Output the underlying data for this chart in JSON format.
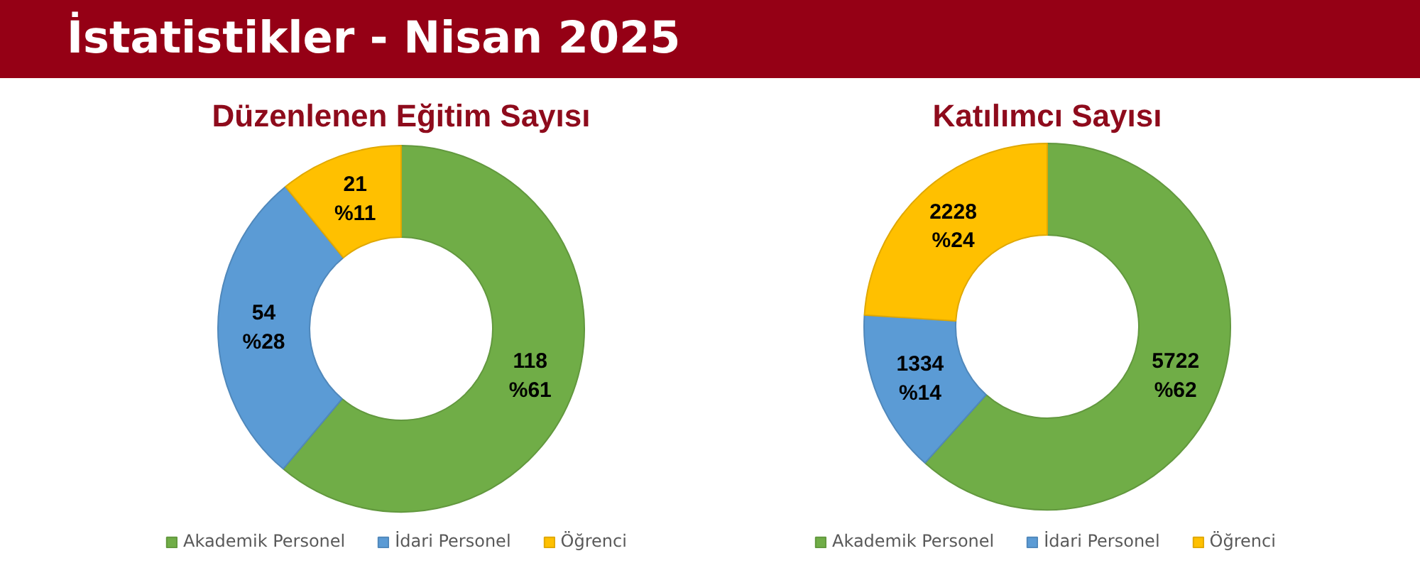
{
  "chart_data": [
    {
      "type": "donut",
      "title": "Düzenlenen Eğitim Sayısı",
      "annotations": [
        "İstatistikler - Nisan 2025"
      ],
      "categories": [
        "Akademik Personel",
        "İdari Personel",
        "Öğrenci"
      ],
      "values": [
        118,
        54,
        21
      ],
      "colors": [
        "#70ad47",
        "#5b9bd5",
        "#ffc000"
      ],
      "value_labels": [
        "118\n%61",
        "54\n%28",
        "21\n%11"
      ],
      "legend": "bottom"
    },
    {
      "type": "donut",
      "title": "Katılımcı Sayısı",
      "categories": [
        "Akademik Personel",
        "İdari Personel",
        "Öğrenci"
      ],
      "values": [
        5722,
        1334,
        2228
      ],
      "colors": [
        "#70ad47",
        "#5b9bd5",
        "#ffc000"
      ],
      "value_labels": [
        "5722\n%62",
        "1334\n%14",
        "2228\n%24"
      ],
      "legend": "bottom"
    }
  ]
}
